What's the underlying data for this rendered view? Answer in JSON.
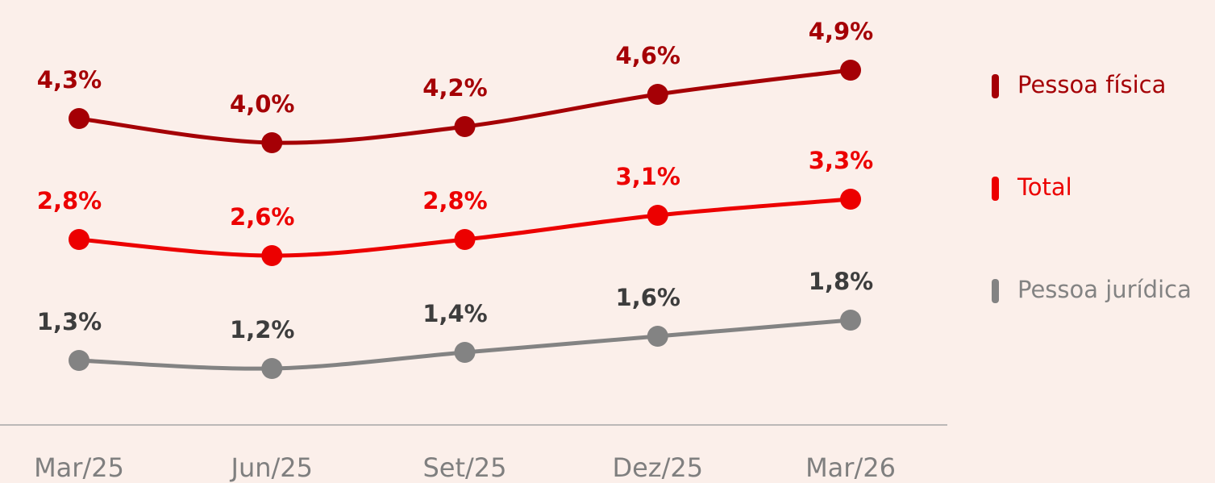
{
  "chart_data": {
    "type": "line",
    "categories": [
      "Mar/25",
      "Jun/25",
      "Set/25",
      "Dez/25",
      "Mar/26"
    ],
    "series": [
      {
        "name": "Pessoa física",
        "color": "#a50005",
        "label_color": "#a50005",
        "values": [
          4.3,
          4.0,
          4.2,
          4.6,
          4.9
        ],
        "value_labels": [
          "4,3%",
          "4,0%",
          "4,2%",
          "4,6%",
          "4,9%"
        ]
      },
      {
        "name": "Total",
        "color": "#ec0000",
        "label_color": "#ec0000",
        "values": [
          2.8,
          2.6,
          2.8,
          3.1,
          3.3
        ],
        "value_labels": [
          "2,8%",
          "2,6%",
          "2,8%",
          "3,1%",
          "3,3%"
        ]
      },
      {
        "name": "Pessoa jurídica",
        "color": "#838383",
        "label_color": "#3d3d3d",
        "values": [
          1.3,
          1.2,
          1.4,
          1.6,
          1.8
        ],
        "value_labels": [
          "1,3%",
          "1,2%",
          "1,4%",
          "1,6%",
          "1,8%"
        ]
      }
    ],
    "ylim": [
      0.5,
      5.5
    ],
    "legend": "right"
  }
}
